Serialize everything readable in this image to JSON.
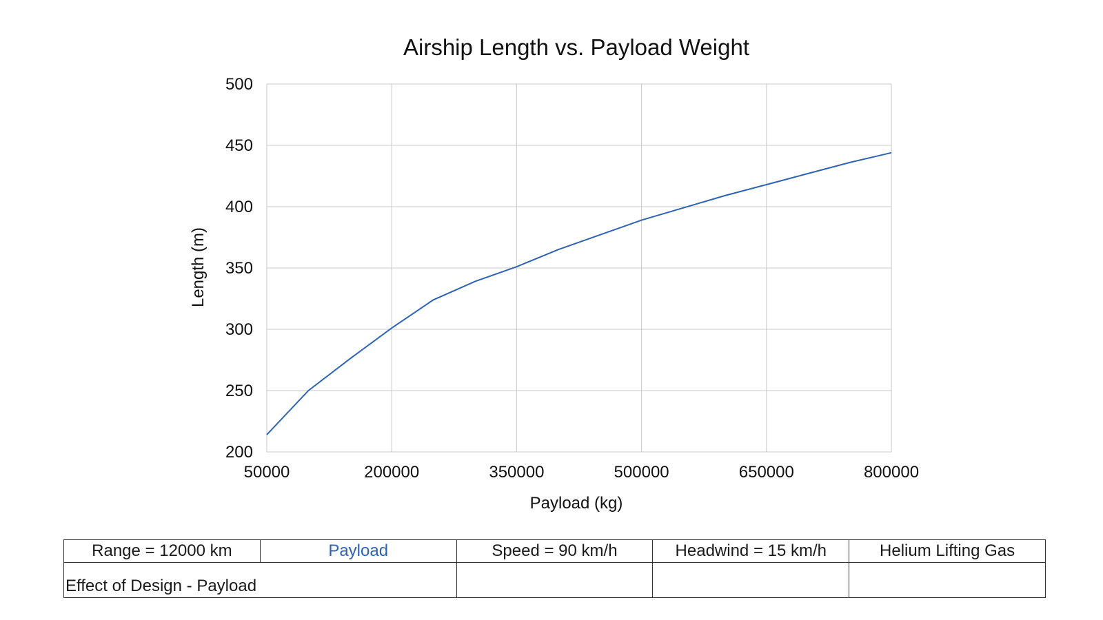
{
  "chart_data": {
    "type": "line",
    "title": "Airship Length vs. Payload Weight",
    "xlabel": "Payload (kg)",
    "ylabel": "Length (m)",
    "xlim": [
      50000,
      800000
    ],
    "ylim": [
      200,
      500
    ],
    "xticks": [
      "50000",
      "200000",
      "350000",
      "500000",
      "650000",
      "800000"
    ],
    "yticks": [
      "200",
      "250",
      "300",
      "350",
      "400",
      "450",
      "500"
    ],
    "grid": true,
    "series": [
      {
        "color": "#2e62b4",
        "x": [
          50000,
          100000,
          150000,
          200000,
          250000,
          300000,
          350000,
          400000,
          450000,
          500000,
          550000,
          600000,
          650000,
          700000,
          750000,
          800000
        ],
        "y": [
          214,
          250,
          276,
          301,
          324,
          339,
          351,
          365,
          377,
          389,
          399,
          409,
          418,
          427,
          436,
          444
        ]
      }
    ]
  },
  "table": {
    "row1": [
      "Range = 12000 km",
      "Payload",
      "Speed = 90 km/h",
      "Headwind = 15 km/h",
      "Helium Lifting Gas"
    ],
    "row2_label": "Effect of Design - Payload"
  }
}
